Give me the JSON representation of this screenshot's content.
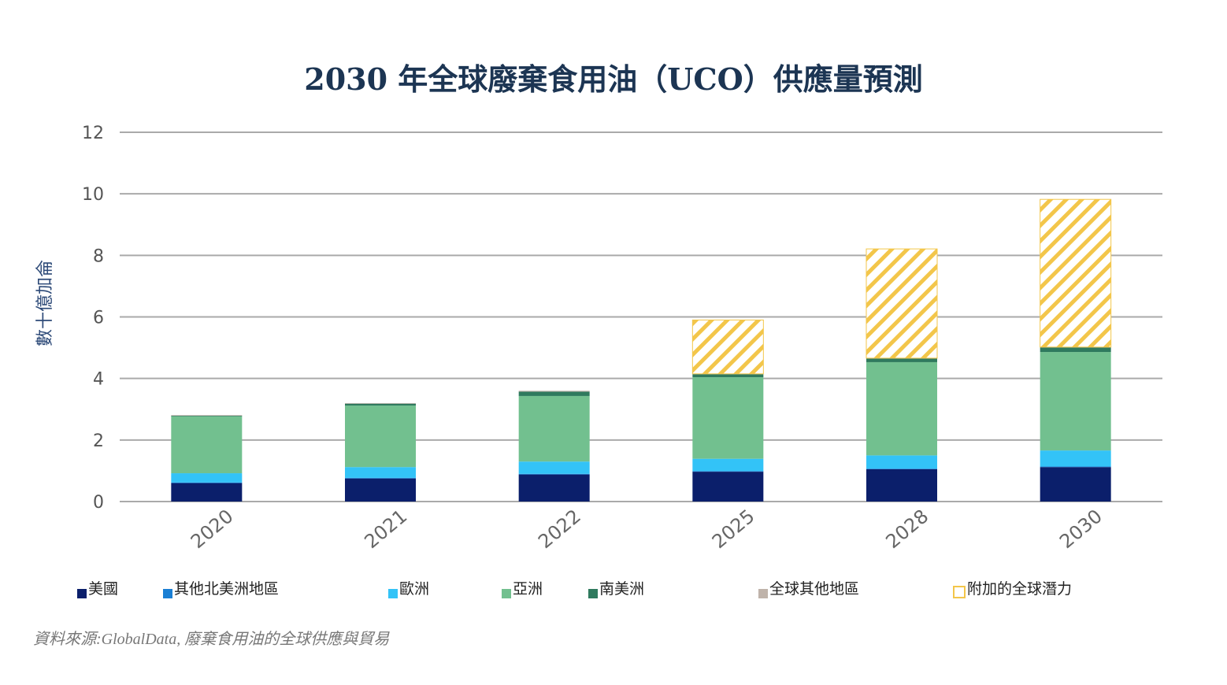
{
  "chart_data": {
    "type": "bar",
    "stacked": true,
    "title": "2030 年全球廢棄食用油（UCO）供應量預測",
    "ylabel": "數十億加侖",
    "xlabel": "",
    "ylim": [
      0,
      12
    ],
    "yticks": [
      "0",
      "2",
      "4",
      "6",
      "8",
      "10",
      "12"
    ],
    "grid": true,
    "legend_position": "bottom",
    "categories": [
      "2020",
      "2021",
      "2022",
      "2025",
      "2028",
      "2030"
    ],
    "series": [
      {
        "name": "美國",
        "color": "#0b1f6b",
        "values": [
          0.6,
          0.75,
          0.88,
          0.97,
          1.05,
          1.12
        ]
      },
      {
        "name": "其他北美洲地區",
        "color": "#1a7fd4",
        "values": [
          0.02,
          0.02,
          0.02,
          0.02,
          0.02,
          0.02
        ]
      },
      {
        "name": "歐洲",
        "color": "#33c3f7",
        "values": [
          0.3,
          0.35,
          0.4,
          0.4,
          0.43,
          0.52
        ]
      },
      {
        "name": "亞洲",
        "color": "#72c08f",
        "values": [
          1.85,
          2.0,
          2.13,
          2.65,
          3.03,
          3.2
        ]
      },
      {
        "name": "南美洲",
        "color": "#2f7a5e",
        "values": [
          0.02,
          0.06,
          0.14,
          0.1,
          0.12,
          0.15
        ]
      },
      {
        "name": "全球其他地區",
        "color": "#bfb3aa",
        "values": [
          0.02,
          0.02,
          0.03,
          0.01,
          0.01,
          0.01
        ]
      },
      {
        "name": "附加的全球潛力",
        "color": "#f3c64a",
        "hatched": true,
        "values": [
          0,
          0,
          0,
          1.75,
          3.55,
          4.8
        ]
      }
    ]
  },
  "source": "資料來源:GlobalData, 廢棄食用油的全球供應與貿易"
}
